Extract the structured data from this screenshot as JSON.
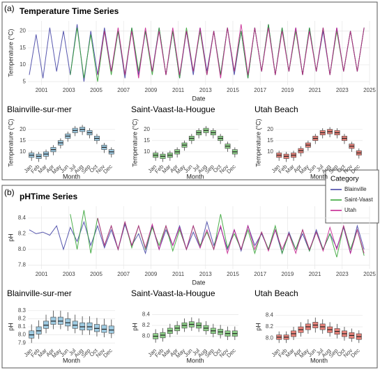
{
  "panel_labels": [
    "(a)",
    "(b)"
  ],
  "legend_title": "Category",
  "chart_data": [
    {
      "type": "line",
      "title": "Temperature Time Series",
      "x_label": "Date",
      "y_label": "Temperature (°C)",
      "x": [
        2000.1,
        2000.6,
        2001.1,
        2001.6,
        2002.1,
        2002.6,
        2003.1,
        2003.6,
        2004.1,
        2004.6,
        2005.1,
        2005.6,
        2006.1,
        2006.6,
        2007.1,
        2007.6,
        2008.1,
        2008.6,
        2009.1,
        2009.6,
        2010.1,
        2010.6,
        2011.1,
        2011.6,
        2012.1,
        2012.6,
        2013.1,
        2013.6,
        2014.1,
        2014.6,
        2015.1,
        2015.6,
        2016.1,
        2016.6,
        2017.1,
        2017.6,
        2018.1,
        2018.6,
        2019.1,
        2019.6,
        2020.1,
        2020.6,
        2021.1,
        2021.6,
        2022.1,
        2022.6,
        2023.1,
        2023.6,
        2024.1,
        2024.6
      ],
      "xlim": [
        2000,
        2025
      ],
      "xticks": [
        2001,
        2003,
        2005,
        2007,
        2009,
        2011,
        2013,
        2015,
        2017,
        2019,
        2021,
        2023,
        2025
      ],
      "ylim": [
        4,
        23
      ],
      "yticks": [
        5,
        10,
        15,
        20
      ],
      "grid": true,
      "series": [
        {
          "name": "Blainville",
          "color": "#3a3aa0",
          "values": [
            7,
            19,
            6,
            21,
            8,
            20,
            7,
            22,
            5,
            20,
            7,
            21,
            8,
            20,
            6,
            21,
            7,
            20,
            8,
            21,
            7,
            20,
            6,
            20,
            7,
            21,
            8,
            20,
            7,
            21,
            7,
            20,
            6,
            21,
            8,
            22,
            7,
            21,
            8,
            21,
            7,
            21,
            8,
            20,
            7,
            21,
            8,
            20,
            8,
            21
          ]
        },
        {
          "name": "Saint-Vaast",
          "color": "#2ca02c",
          "values": [
            null,
            null,
            null,
            null,
            null,
            null,
            7,
            21,
            6,
            19,
            5,
            20,
            7,
            20,
            7,
            21,
            8,
            20,
            7,
            21,
            7,
            20,
            6,
            21,
            8,
            20,
            7,
            20,
            7,
            21,
            8,
            20,
            6,
            21,
            8,
            22,
            7,
            21,
            8,
            20,
            7,
            21,
            8,
            21,
            7,
            20,
            8,
            20,
            8,
            21
          ]
        },
        {
          "name": "Utah",
          "color": "#c2188a",
          "values": [
            null,
            null,
            null,
            null,
            null,
            null,
            null,
            null,
            null,
            null,
            7,
            20,
            8,
            21,
            7,
            20,
            6,
            21,
            8,
            20,
            7,
            21,
            7,
            20,
            8,
            21,
            7,
            20,
            6,
            21,
            8,
            22,
            7,
            21,
            8,
            21,
            7,
            20,
            8,
            21,
            7,
            20,
            8,
            21,
            7,
            21,
            8,
            20,
            8,
            21
          ]
        }
      ]
    },
    {
      "type": "box",
      "title": "Blainville-sur-mer",
      "x_label": "Month",
      "y_label": "Temperature (°C)",
      "color": "#9ecae1",
      "categories": [
        "Jan",
        "Feb",
        "Mar",
        "Apr",
        "May",
        "Jun",
        "Jul",
        "Aug",
        "Sep",
        "Oct",
        "Nov",
        "Dec"
      ],
      "low": [
        6,
        5.5,
        6.5,
        8.5,
        11.5,
        14.5,
        17,
        17.5,
        16,
        13.5,
        9.5,
        7.5
      ],
      "q1": [
        7.5,
        7,
        8,
        10,
        13,
        16,
        18.5,
        19,
        17.5,
        15,
        11,
        9
      ],
      "median": [
        8.5,
        8,
        9,
        11,
        14,
        17,
        19.5,
        20,
        18.5,
        16,
        12,
        10
      ],
      "q3": [
        9.5,
        9,
        10,
        12,
        15,
        18,
        20.5,
        21,
        19.5,
        17,
        13,
        11
      ],
      "high": [
        10.5,
        10,
        11,
        13,
        16,
        19,
        21.5,
        22,
        20.5,
        18,
        14,
        12
      ],
      "ylim": [
        5,
        23
      ],
      "yticks": [
        10,
        15,
        20
      ]
    },
    {
      "type": "box",
      "title": "Saint-Vaast-la-Hougue",
      "x_label": "Month",
      "y_label": "Temperature (°C)",
      "color": "#8fd18a",
      "categories": [
        "Jan",
        "Feb",
        "Mar",
        "Apr",
        "May",
        "Jun",
        "Jul",
        "Aug",
        "Sep",
        "Oct",
        "Nov",
        "Dec"
      ],
      "low": [
        6,
        5.5,
        6,
        7.5,
        10.5,
        13.5,
        16,
        17,
        16,
        13.5,
        10,
        7.5
      ],
      "q1": [
        7.5,
        7,
        7.5,
        9,
        12,
        15,
        17.5,
        18.5,
        17.5,
        15,
        11.5,
        9
      ],
      "median": [
        8.5,
        8,
        8.5,
        10,
        13,
        16,
        18.5,
        19.5,
        18.5,
        16,
        12.5,
        10
      ],
      "q3": [
        9.5,
        9,
        9.5,
        11,
        14,
        17,
        19.5,
        20.5,
        19.5,
        17,
        13.5,
        11
      ],
      "high": [
        10.5,
        10,
        10.5,
        12,
        15,
        18,
        20.5,
        21.5,
        20.5,
        18,
        14.5,
        12
      ],
      "ylim": [
        5,
        23
      ],
      "yticks": [
        10,
        15,
        20
      ]
    },
    {
      "type": "box",
      "title": "Utah Beach",
      "x_label": "Month",
      "y_label": "Temperature (°C)",
      "color": "#e8827a",
      "categories": [
        "Jan",
        "Feb",
        "Mar",
        "Apr",
        "May",
        "Jun",
        "Jul",
        "Aug",
        "Sep",
        "Oct",
        "Nov",
        "Dec"
      ],
      "low": [
        6,
        5.5,
        6,
        8,
        10.5,
        13.5,
        16,
        16.5,
        16,
        13.5,
        10,
        7
      ],
      "q1": [
        7.5,
        7,
        7.5,
        9.5,
        12,
        15,
        17.5,
        18,
        17.5,
        15,
        11.5,
        8.5
      ],
      "median": [
        8.5,
        8,
        8.5,
        10.5,
        13,
        16,
        18.5,
        19,
        18.5,
        16,
        12.5,
        9.5
      ],
      "q3": [
        9.5,
        9,
        9.5,
        11.5,
        14,
        17,
        19.5,
        20,
        19.5,
        17,
        13.5,
        10.5
      ],
      "high": [
        10.5,
        10,
        10.5,
        12.5,
        15,
        18,
        20.5,
        21,
        20.5,
        18,
        14.5,
        11.5
      ],
      "ylim": [
        5,
        23
      ],
      "yticks": [
        10,
        15,
        20
      ]
    },
    {
      "type": "line",
      "title": "pHTime Series",
      "x_label": "Date",
      "y_label": "pH",
      "x": [
        2000.1,
        2000.6,
        2001.1,
        2001.6,
        2002.1,
        2002.6,
        2003.1,
        2003.6,
        2004.1,
        2004.6,
        2005.1,
        2005.6,
        2006.1,
        2006.6,
        2007.1,
        2007.6,
        2008.1,
        2008.6,
        2009.1,
        2009.6,
        2010.1,
        2010.6,
        2011.1,
        2011.6,
        2012.1,
        2012.6,
        2013.1,
        2013.6,
        2014.1,
        2014.6,
        2015.1,
        2015.6,
        2016.1,
        2016.6,
        2017.1,
        2017.6,
        2018.1,
        2018.6,
        2019.1,
        2019.6,
        2020.1,
        2020.6,
        2021.1,
        2021.6,
        2022.1,
        2022.6,
        2023.1,
        2023.6,
        2024.1,
        2024.6
      ],
      "xlim": [
        2000,
        2025
      ],
      "xticks": [
        2001,
        2003,
        2005,
        2007,
        2009,
        2011,
        2013,
        2015,
        2017,
        2019,
        2021,
        2023,
        2025
      ],
      "ylim": [
        7.75,
        8.55
      ],
      "yticks": [
        7.8,
        {
          "value": 8,
          "label": "8.0"
        },
        8.2,
        8.4
      ],
      "grid": true,
      "series": [
        {
          "name": "Blainville",
          "color": "#3a3aa0",
          "values": [
            8.25,
            8.2,
            8.22,
            8.18,
            8.3,
            8.0,
            8.28,
            8.1,
            8.35,
            8.05,
            8.3,
            8.02,
            8.25,
            8.0,
            8.32,
            8.05,
            8.2,
            7.95,
            8.3,
            8.0,
            8.25,
            8.05,
            8.3,
            8.0,
            8.22,
            8.02,
            8.35,
            8.05,
            8.28,
            8.0,
            8.25,
            7.98,
            8.3,
            8.05,
            8.2,
            8.0,
            8.25,
            7.95,
            8.22,
            8.0,
            8.2,
            7.98,
            8.25,
            8.0,
            8.2,
            8.02,
            8.28,
            7.95,
            8.3,
            8.0
          ]
        },
        {
          "name": "Saint-Vaast",
          "color": "#2ca02c",
          "values": [
            null,
            null,
            null,
            null,
            null,
            null,
            8.45,
            8.0,
            8.5,
            7.95,
            8.4,
            8.05,
            8.3,
            8.0,
            8.35,
            8.02,
            8.3,
            8.0,
            8.28,
            8.05,
            8.3,
            7.98,
            8.25,
            8.0,
            8.3,
            8.05,
            8.22,
            8.0,
            8.45,
            8.02,
            8.2,
            8.0,
            8.25,
            7.95,
            8.22,
            8.0,
            8.3,
            7.95,
            8.2,
            8.0,
            8.25,
            7.98,
            8.22,
            8.0,
            8.2,
            7.9,
            8.3,
            8.0,
            8.25,
            7.92
          ]
        },
        {
          "name": "Utah",
          "color": "#c2188a",
          "values": [
            null,
            null,
            null,
            null,
            null,
            null,
            null,
            null,
            null,
            null,
            8.4,
            8.05,
            8.3,
            8.0,
            8.35,
            8.05,
            8.3,
            8.02,
            8.32,
            8.0,
            8.3,
            8.05,
            8.28,
            8.0,
            8.3,
            8.02,
            8.25,
            8.0,
            8.3,
            7.95,
            8.25,
            8.0,
            8.3,
            8.0,
            8.22,
            7.98,
            8.25,
            8.0,
            8.2,
            7.95,
            8.25,
            8.0,
            8.22,
            7.98,
            8.28,
            8.0,
            8.3,
            7.95,
            8.25,
            7.95
          ]
        }
      ]
    },
    {
      "type": "box",
      "title": "Blainville-sur-mer",
      "x_label": "Month",
      "y_label": "pH",
      "color": "#9ecae1",
      "categories": [
        "Jan",
        "Feb",
        "Mar",
        "Apr",
        "May",
        "Jun",
        "Jul",
        "Aug",
        "Sep",
        "Oct",
        "Nov",
        "Dec"
      ],
      "low": [
        7.9,
        7.95,
        8.02,
        8.07,
        8.07,
        8.05,
        8.02,
        8.0,
        8.0,
        7.98,
        7.97,
        7.96
      ],
      "q1": [
        7.96,
        8.01,
        8.08,
        8.13,
        8.13,
        8.11,
        8.08,
        8.06,
        8.06,
        8.04,
        8.03,
        8.02
      ],
      "median": [
        8.0,
        8.05,
        8.12,
        8.17,
        8.17,
        8.15,
        8.12,
        8.1,
        8.1,
        8.08,
        8.07,
        8.06
      ],
      "q3": [
        8.05,
        8.1,
        8.17,
        8.22,
        8.22,
        8.2,
        8.17,
        8.15,
        8.15,
        8.13,
        8.12,
        8.11
      ],
      "high": [
        8.13,
        8.18,
        8.25,
        8.3,
        8.3,
        8.28,
        8.25,
        8.23,
        8.23,
        8.21,
        8.2,
        8.19
      ],
      "ylim": [
        7.85,
        8.35
      ],
      "yticks": [
        7.9,
        {
          "value": 8,
          "label": "8.0"
        },
        8.1,
        8.2,
        8.3
      ]
    },
    {
      "type": "box",
      "title": "Saint-Vaast-la-Hougue",
      "x_label": "Month",
      "y_label": "pH",
      "color": "#8fd18a",
      "categories": [
        "Jan",
        "Feb",
        "Mar",
        "Apr",
        "May",
        "Jun",
        "Jul",
        "Aug",
        "Sep",
        "Oct",
        "Nov",
        "Dec"
      ],
      "low": [
        7.88,
        7.9,
        7.98,
        8.03,
        8.08,
        8.1,
        8.08,
        8.03,
        7.98,
        7.96,
        7.93,
        7.93
      ],
      "q1": [
        7.95,
        7.97,
        8.05,
        8.1,
        8.15,
        8.17,
        8.15,
        8.1,
        8.05,
        8.03,
        8.0,
        8.0
      ],
      "median": [
        8.0,
        8.02,
        8.1,
        8.15,
        8.2,
        8.22,
        8.2,
        8.15,
        8.1,
        8.08,
        8.05,
        8.05
      ],
      "q3": [
        8.05,
        8.07,
        8.15,
        8.2,
        8.25,
        8.27,
        8.25,
        8.2,
        8.15,
        8.13,
        8.1,
        8.1
      ],
      "high": [
        8.13,
        8.15,
        8.23,
        8.28,
        8.33,
        8.35,
        8.33,
        8.28,
        8.23,
        8.21,
        8.18,
        8.18
      ],
      "ylim": [
        7.8,
        8.55
      ],
      "yticks": [
        {
          "value": 8,
          "label": "8.0"
        },
        8.2,
        8.4
      ]
    },
    {
      "type": "box",
      "title": "Utah Beach",
      "x_label": "Month",
      "y_label": "pH",
      "color": "#e8827a",
      "categories": [
        "Jan",
        "Feb",
        "Mar",
        "Apr",
        "May",
        "Jun",
        "Jul",
        "Aug",
        "Sep",
        "Oct",
        "Nov",
        "Dec"
      ],
      "low": [
        7.92,
        7.92,
        7.97,
        8.03,
        8.08,
        8.1,
        8.08,
        8.03,
        8.0,
        7.96,
        7.94,
        7.92
      ],
      "q1": [
        7.98,
        7.98,
        8.03,
        8.1,
        8.15,
        8.18,
        8.15,
        8.1,
        8.07,
        8.03,
        8.0,
        7.98
      ],
      "median": [
        8.02,
        8.02,
        8.08,
        8.15,
        8.2,
        8.23,
        8.2,
        8.15,
        8.12,
        8.08,
        8.05,
        8.03
      ],
      "q3": [
        8.06,
        8.06,
        8.13,
        8.2,
        8.25,
        8.28,
        8.25,
        8.2,
        8.17,
        8.13,
        8.1,
        8.08
      ],
      "high": [
        8.12,
        8.12,
        8.2,
        8.28,
        8.33,
        8.36,
        8.33,
        8.28,
        8.25,
        8.2,
        8.17,
        8.14
      ],
      "ylim": [
        7.85,
        8.55
      ],
      "yticks": [
        {
          "value": 8,
          "label": "8.0"
        },
        8.2,
        8.4
      ]
    }
  ]
}
